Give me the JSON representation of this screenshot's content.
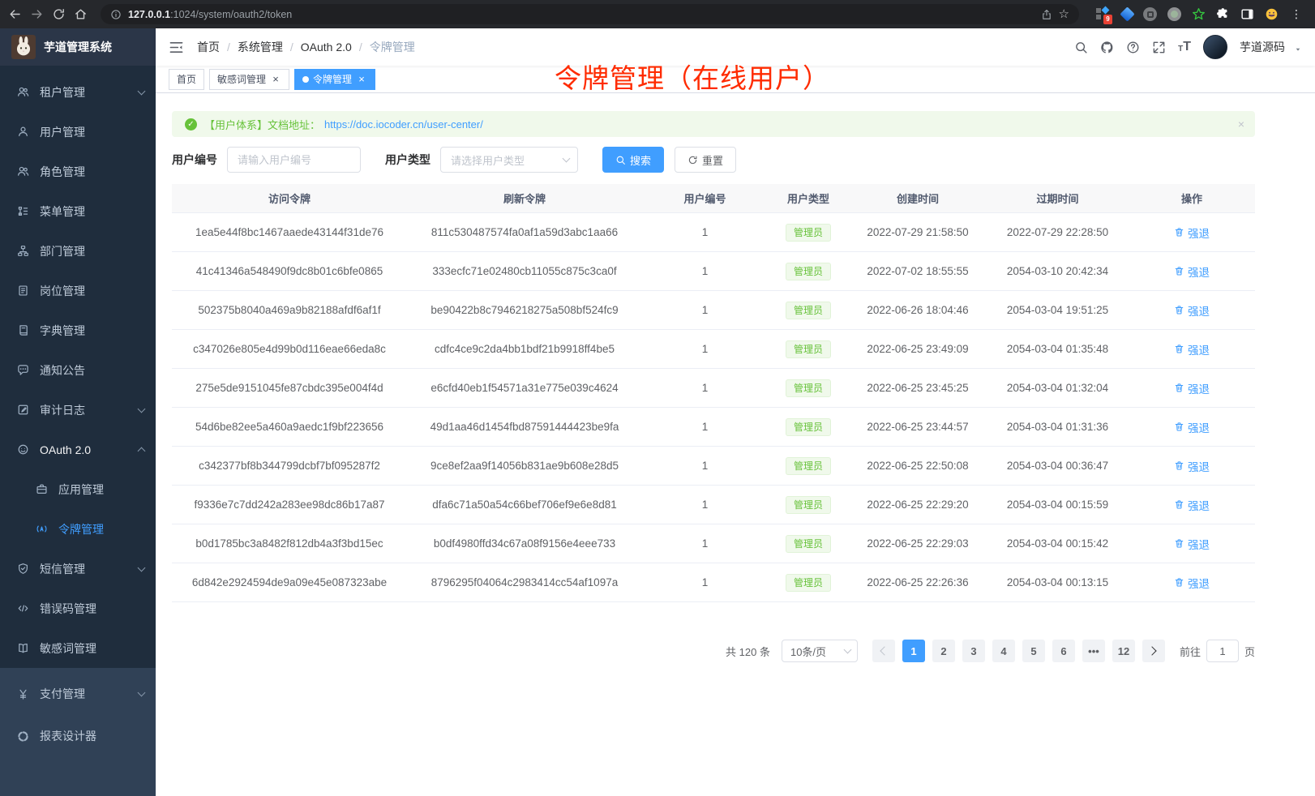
{
  "browser": {
    "url_host": "127.0.0.1",
    "url_rest": ":1024/system/oauth2/token",
    "extension_badge": "9"
  },
  "sidebar": {
    "title": "芋道管理系统",
    "items": [
      {
        "label": "租户管理",
        "icon": "tenant-users",
        "chevron": "down"
      },
      {
        "label": "用户管理",
        "icon": "user"
      },
      {
        "label": "角色管理",
        "icon": "role-users"
      },
      {
        "label": "菜单管理",
        "icon": "menu-tree"
      },
      {
        "label": "部门管理",
        "icon": "org-chart"
      },
      {
        "label": "岗位管理",
        "icon": "id-badge"
      },
      {
        "label": "字典管理",
        "icon": "dictionary"
      },
      {
        "label": "通知公告",
        "icon": "announcement"
      },
      {
        "label": "审计日志",
        "icon": "audit-log",
        "chevron": "down"
      },
      {
        "label": "OAuth 2.0",
        "icon": "oauth",
        "chevron": "up",
        "open": true
      },
      {
        "label": "应用管理",
        "icon": "briefcase",
        "child": true
      },
      {
        "label": "令牌管理",
        "icon": "token-signal",
        "child": true,
        "active": true
      },
      {
        "label": "短信管理",
        "icon": "shield-check",
        "chevron": "down"
      },
      {
        "label": "错误码管理",
        "icon": "code"
      },
      {
        "label": "敏感词管理",
        "icon": "open-book"
      }
    ],
    "items_lower": [
      {
        "label": "支付管理",
        "icon": "yen",
        "chevron": "down"
      },
      {
        "label": "报表设计器",
        "icon": "report-designer"
      }
    ]
  },
  "navbar": {
    "breadcrumb": [
      {
        "label": "首页"
      },
      {
        "label": "系统管理"
      },
      {
        "label": "OAuth 2.0"
      },
      {
        "label": "令牌管理",
        "muted": true
      }
    ],
    "user_name": "芋道源码"
  },
  "tabs": [
    {
      "label": "首页"
    },
    {
      "label": "敏感词管理",
      "closable": true
    },
    {
      "label": "令牌管理",
      "closable": true,
      "active": true
    }
  ],
  "annotation": "令牌管理（在线用户）",
  "alert": {
    "text": "【用户体系】文档地址：",
    "link": "https://doc.iocoder.cn/user-center/",
    "close": "×"
  },
  "filters": {
    "user_id_label": "用户编号",
    "user_id_placeholder": "请输入用户编号",
    "user_type_label": "用户类型",
    "user_type_placeholder": "请选择用户类型",
    "search_label": "搜索",
    "reset_label": "重置"
  },
  "table": {
    "columns": [
      "访问令牌",
      "刷新令牌",
      "用户编号",
      "用户类型",
      "创建时间",
      "过期时间",
      "操作"
    ],
    "action_label": "强退",
    "rows": [
      {
        "access_token": "1ea5e44f8bc1467aaede43144f31de76",
        "refresh_token": "811c530487574fa0af1a59d3abc1aa66",
        "user_id": "1",
        "user_type": "管理员",
        "create_time": "2022-07-29 21:58:50",
        "expire_time": "2022-07-29 22:28:50"
      },
      {
        "access_token": "41c41346a548490f9dc8b01c6bfe0865",
        "refresh_token": "333ecfc71e02480cb11055c875c3ca0f",
        "user_id": "1",
        "user_type": "管理员",
        "create_time": "2022-07-02 18:55:55",
        "expire_time": "2054-03-10 20:42:34"
      },
      {
        "access_token": "502375b8040a469a9b82188afdf6af1f",
        "refresh_token": "be90422b8c7946218275a508bf524fc9",
        "user_id": "1",
        "user_type": "管理员",
        "create_time": "2022-06-26 18:04:46",
        "expire_time": "2054-03-04 19:51:25"
      },
      {
        "access_token": "c347026e805e4d99b0d116eae66eda8c",
        "refresh_token": "cdfc4ce9c2da4bb1bdf21b9918ff4be5",
        "user_id": "1",
        "user_type": "管理员",
        "create_time": "2022-06-25 23:49:09",
        "expire_time": "2054-03-04 01:35:48"
      },
      {
        "access_token": "275e5de9151045fe87cbdc395e004f4d",
        "refresh_token": "e6cfd40eb1f54571a31e775e039c4624",
        "user_id": "1",
        "user_type": "管理员",
        "create_time": "2022-06-25 23:45:25",
        "expire_time": "2054-03-04 01:32:04"
      },
      {
        "access_token": "54d6be82ee5a460a9aedc1f9bf223656",
        "refresh_token": "49d1aa46d1454fbd87591444423be9fa",
        "user_id": "1",
        "user_type": "管理员",
        "create_time": "2022-06-25 23:44:57",
        "expire_time": "2054-03-04 01:31:36"
      },
      {
        "access_token": "c342377bf8b344799dcbf7bf095287f2",
        "refresh_token": "9ce8ef2aa9f14056b831ae9b608e28d5",
        "user_id": "1",
        "user_type": "管理员",
        "create_time": "2022-06-25 22:50:08",
        "expire_time": "2054-03-04 00:36:47"
      },
      {
        "access_token": "f9336e7c7dd242a283ee98dc86b17a87",
        "refresh_token": "dfa6c71a50a54c66bef706ef9e6e8d81",
        "user_id": "1",
        "user_type": "管理员",
        "create_time": "2022-06-25 22:29:20",
        "expire_time": "2054-03-04 00:15:59"
      },
      {
        "access_token": "b0d1785bc3a8482f812db4a3f3bd15ec",
        "refresh_token": "b0df4980ffd34c67a08f9156e4eee733",
        "user_id": "1",
        "user_type": "管理员",
        "create_time": "2022-06-25 22:29:03",
        "expire_time": "2054-03-04 00:15:42"
      },
      {
        "access_token": "6d842e2924594de9a09e45e087323abe",
        "refresh_token": "8796295f04064c2983414cc54af1097a",
        "user_id": "1",
        "user_type": "管理员",
        "create_time": "2022-06-25 22:26:36",
        "expire_time": "2054-03-04 00:13:15"
      }
    ]
  },
  "pagination": {
    "total_text": "共 120 条",
    "page_size": "10条/页",
    "pages": [
      {
        "label": "1",
        "active": true
      },
      {
        "label": "2"
      },
      {
        "label": "3"
      },
      {
        "label": "4"
      },
      {
        "label": "5"
      },
      {
        "label": "6"
      },
      {
        "label": "•••"
      },
      {
        "label": "12"
      }
    ],
    "goto_label": "前往",
    "goto_value": "1",
    "goto_suffix": "页"
  },
  "colors": {
    "accent": "#409eff",
    "success": "#67c23a",
    "annotation_red": "#ff2b00",
    "sidebar_dark": "#1f2d3d",
    "sidebar_light": "#304156"
  }
}
